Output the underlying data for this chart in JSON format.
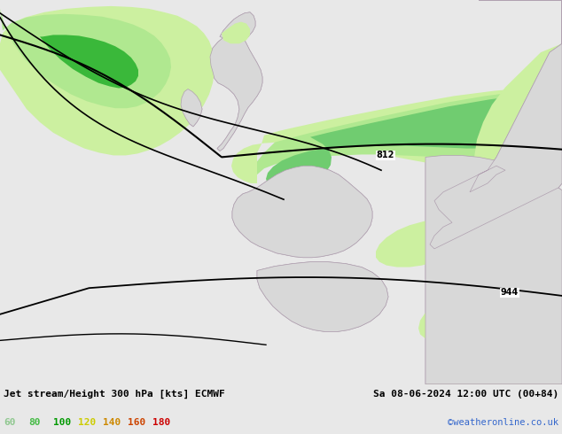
{
  "title_left": "Jet stream/Height 300 hPa [kts] ECMWF",
  "title_right": "Sa 08-06-2024 12:00 UTC (00+84)",
  "credit": "©weatheronline.co.uk",
  "legend_values": [
    "60",
    "80",
    "100",
    "120",
    "140",
    "160",
    "180"
  ],
  "legend_colors": [
    "#90ee90",
    "#66cc66",
    "#00bb00",
    "#ffff00",
    "#ffa500",
    "#ff4500",
    "#ff0000"
  ],
  "bg_color": "#e8e8e8",
  "fig_width": 6.34,
  "fig_height": 4.9,
  "dpi": 100
}
